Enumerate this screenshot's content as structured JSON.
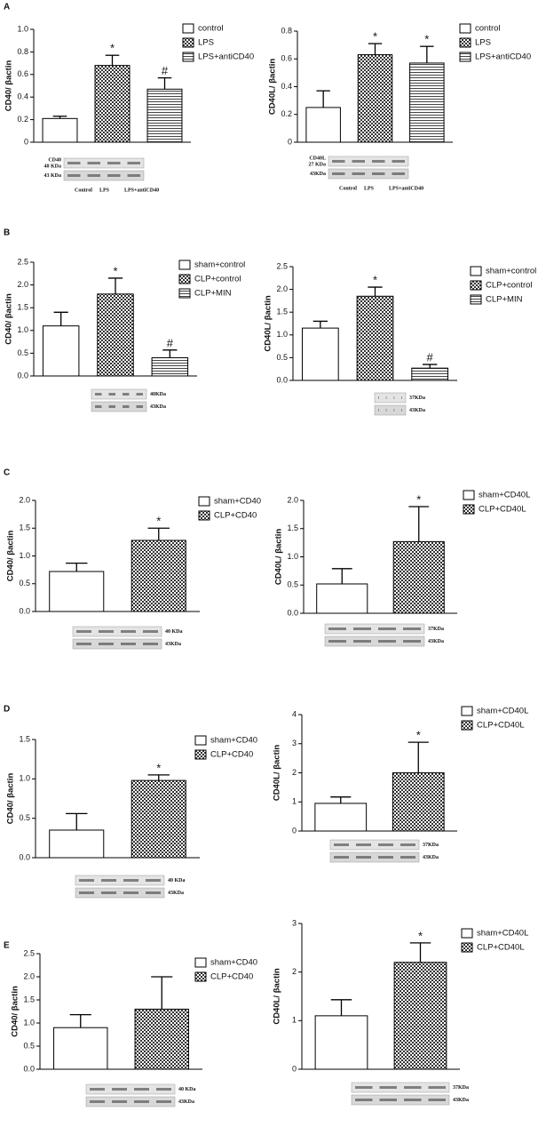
{
  "chart_data": [
    {
      "type": "bar",
      "panel": "A",
      "ylabel": "CD40/ βactin",
      "categories": [
        "control",
        "LPS",
        "LPS+antiCD40"
      ],
      "values": [
        0.21,
        0.68,
        0.47
      ],
      "errors": [
        0.02,
        0.09,
        0.1
      ],
      "annotations": [
        null,
        "*",
        "#"
      ],
      "ylim": [
        0,
        1.0
      ],
      "yticks": [
        0,
        0.2,
        0.4,
        0.6,
        0.8,
        {
          "value": 1.0,
          "label": "1.0"
        }
      ],
      "blot": {
        "labels": [
          [
            "CD40",
            "40 KDa"
          ],
          [
            "43 KDa"
          ]
        ],
        "lanes": [
          "Control",
          "LPS",
          "LPS+antiCD40"
        ]
      }
    },
    {
      "type": "bar",
      "ylabel": "CD40L/ βactin",
      "categories": [
        "control",
        "LPS",
        "LPS+antiCD40"
      ],
      "values": [
        0.25,
        0.63,
        0.57
      ],
      "errors": [
        0.12,
        0.08,
        0.12
      ],
      "annotations": [
        null,
        "*",
        "*"
      ],
      "ylim": [
        0,
        0.8
      ],
      "yticks": [
        0,
        0.2,
        0.4,
        0.6,
        0.8
      ],
      "blot": {
        "labels": [
          [
            "CD40L",
            "27 KDa"
          ],
          [
            "43KDa"
          ]
        ],
        "lanes": [
          "Control",
          "LPS",
          "LPS+antiCD40"
        ]
      }
    },
    {
      "type": "bar",
      "panel": "B",
      "ylabel": "CD40/ βactin",
      "categories": [
        "sham+control",
        "CLP+control",
        "CLP+MIN"
      ],
      "values": [
        1.1,
        1.8,
        0.4
      ],
      "errors": [
        0.3,
        0.35,
        0.17
      ],
      "annotations": [
        null,
        "*",
        "#"
      ],
      "ylim": [
        0,
        2.5
      ],
      "yticks": [
        {
          "value": 0,
          "label": "0.0"
        },
        0.5,
        {
          "value": 1.0,
          "label": "1.0"
        },
        1.5,
        {
          "value": 2.0,
          "label": "2.0"
        },
        2.5
      ],
      "blot": {
        "labels": [
          [
            "40KDa"
          ],
          [
            "43KDa"
          ]
        ]
      }
    },
    {
      "type": "bar",
      "ylabel": "CD40L/ βactin",
      "categories": [
        "sham+control",
        "CLP+control",
        "CLP+MIN"
      ],
      "values": [
        1.15,
        1.85,
        0.27
      ],
      "errors": [
        0.15,
        0.2,
        0.08
      ],
      "annotations": [
        null,
        "*",
        "#"
      ],
      "ylim": [
        0,
        2.5
      ],
      "yticks": [
        {
          "value": 0,
          "label": "0.0"
        },
        0.5,
        {
          "value": 1.0,
          "label": "1.0"
        },
        1.5,
        {
          "value": 2.0,
          "label": "2.0"
        },
        2.5
      ],
      "blot": {
        "labels": [
          [
            "37KDa"
          ],
          [
            "43KDa"
          ]
        ]
      }
    },
    {
      "type": "bar",
      "panel": "C",
      "ylabel": "CD40/ βactin",
      "categories": [
        "sham+CD40",
        "CLP+CD40"
      ],
      "values": [
        0.72,
        1.28
      ],
      "errors": [
        0.15,
        0.22
      ],
      "annotations": [
        null,
        "*"
      ],
      "ylim": [
        0,
        2.0
      ],
      "yticks": [
        {
          "value": 0,
          "label": "0.0"
        },
        0.5,
        {
          "value": 1.0,
          "label": "1.0"
        },
        1.5,
        {
          "value": 2.0,
          "label": "2.0"
        }
      ],
      "blot": {
        "labels": [
          [
            "40 KDa"
          ],
          [
            "43KDa"
          ]
        ]
      }
    },
    {
      "type": "bar",
      "ylabel": "CD40L/ βactin",
      "categories": [
        "sham+CD40L",
        "CLP+CD40L"
      ],
      "values": [
        0.52,
        1.27
      ],
      "errors": [
        0.27,
        0.62
      ],
      "annotations": [
        null,
        "*"
      ],
      "ylim": [
        0,
        2.0
      ],
      "yticks": [
        {
          "value": 0,
          "label": "0.0"
        },
        0.5,
        {
          "value": 1.0,
          "label": "1.0"
        },
        1.5,
        {
          "value": 2.0,
          "label": "2.0"
        }
      ],
      "blot": {
        "labels": [
          [
            "37KDa"
          ],
          [
            "43KDa"
          ]
        ]
      }
    },
    {
      "type": "bar",
      "panel": "D",
      "ylabel": "CD40/ βactin",
      "categories": [
        "sham+CD40",
        "CLP+CD40"
      ],
      "values": [
        0.35,
        0.98
      ],
      "errors": [
        0.21,
        0.07
      ],
      "annotations": [
        null,
        "*"
      ],
      "ylim": [
        0,
        1.5
      ],
      "yticks": [
        {
          "value": 0,
          "label": "0.0"
        },
        0.5,
        {
          "value": 1.0,
          "label": "1.0"
        },
        1.5
      ],
      "blot": {
        "labels": [
          [
            "40 KDa"
          ],
          [
            "43KDa"
          ]
        ]
      }
    },
    {
      "type": "bar",
      "ylabel": "CD40L/ βactin",
      "categories": [
        "sham+CD40L",
        "CLP+CD40L"
      ],
      "values": [
        0.95,
        2.0
      ],
      "errors": [
        0.22,
        1.05
      ],
      "annotations": [
        null,
        "*"
      ],
      "ylim": [
        0,
        4
      ],
      "yticks": [
        0,
        1,
        2,
        3,
        4
      ],
      "blot": {
        "labels": [
          [
            "37KDa"
          ],
          [
            "43KDa"
          ]
        ]
      }
    },
    {
      "type": "bar",
      "panel": "E",
      "ylabel": "CD40/ βactin",
      "categories": [
        "sham+CD40",
        "CLP+CD40"
      ],
      "values": [
        0.9,
        1.3
      ],
      "errors": [
        0.28,
        0.7
      ],
      "annotations": [
        null,
        null
      ],
      "ylim": [
        0,
        2.5
      ],
      "yticks": [
        {
          "value": 0,
          "label": "0.0"
        },
        0.5,
        {
          "value": 1.0,
          "label": "1.0"
        },
        1.5,
        {
          "value": 2.0,
          "label": "2.0"
        },
        2.5
      ],
      "blot": {
        "labels": [
          [
            "40 KDa"
          ],
          [
            "43KDa"
          ]
        ]
      }
    },
    {
      "type": "bar",
      "ylabel": "CD40L/ βactin",
      "categories": [
        "sham+CD40L",
        "CLP+CD40L"
      ],
      "values": [
        1.1,
        2.2
      ],
      "errors": [
        0.33,
        0.4
      ],
      "annotations": [
        null,
        "*"
      ],
      "ylim": [
        0,
        3
      ],
      "yticks": [
        0,
        1,
        2,
        3
      ],
      "blot": {
        "labels": [
          [
            "37KDa"
          ],
          [
            "43KDa"
          ]
        ]
      }
    }
  ]
}
